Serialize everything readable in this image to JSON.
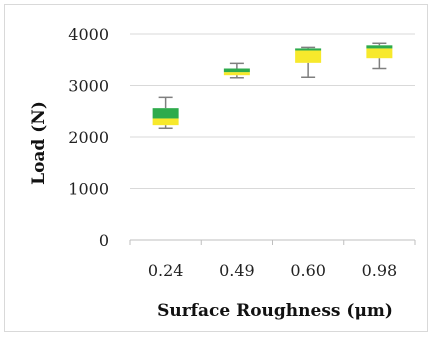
{
  "chart_data": {
    "type": "boxplot",
    "title": "",
    "xlabel": "Surface Roughness (μm)",
    "ylabel": "Load (N)",
    "categories": [
      "0.24",
      "0.49",
      "0.60",
      "0.98"
    ],
    "ylim": [
      0,
      4000
    ],
    "yticks": [
      "0",
      "1000",
      "2000",
      "3000",
      "4000"
    ],
    "grid": true,
    "legend": "none",
    "boxes": [
      {
        "category": "0.24",
        "min": 2170,
        "q1": 2230,
        "median": 2360,
        "q3": 2560,
        "max": 2770
      },
      {
        "category": "0.49",
        "min": 3150,
        "q1": 3200,
        "median": 3260,
        "q3": 3330,
        "max": 3430
      },
      {
        "category": "0.60",
        "min": 3160,
        "q1": 3440,
        "median": 3680,
        "q3": 3720,
        "max": 3740
      },
      {
        "category": "0.98",
        "min": 3330,
        "q1": 3530,
        "median": 3720,
        "q3": 3780,
        "max": 3820
      }
    ],
    "colors": {
      "lower_box": "#f7e92c",
      "upper_box": "#2eab4c",
      "whisker": "#7f7f7f",
      "gridline": "#d9d9d9"
    }
  }
}
